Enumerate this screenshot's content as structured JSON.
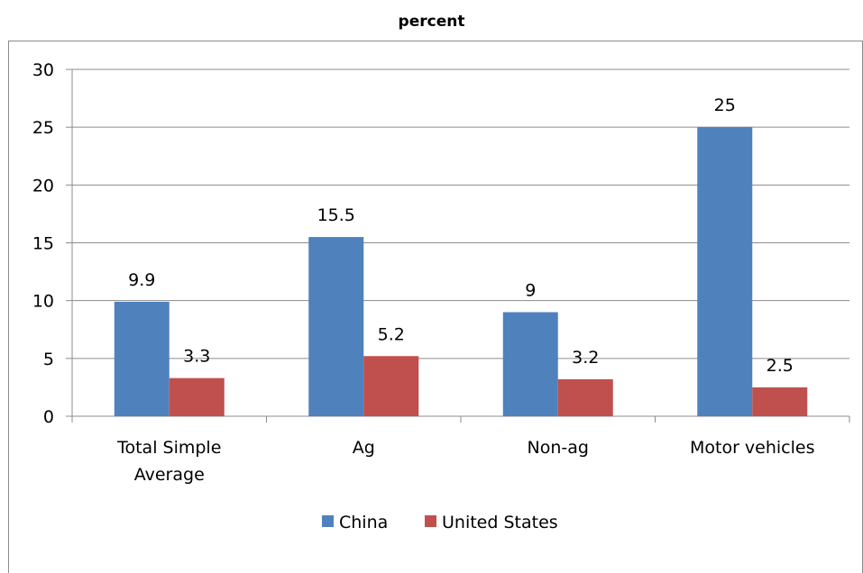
{
  "chart_data": {
    "type": "bar",
    "title": "percent",
    "categories": [
      "Total Simple Average",
      "Ag",
      "Non-ag",
      "Motor vehicles"
    ],
    "category_label_lines": [
      [
        "Total Simple",
        "Average"
      ],
      [
        "Ag"
      ],
      [
        "Non-ag"
      ],
      [
        "Motor vehicles"
      ]
    ],
    "series": [
      {
        "name": "China",
        "values": [
          9.9,
          15.5,
          9,
          25
        ],
        "color": "#4f81bd",
        "labels": [
          "9.9",
          "15.5",
          "9",
          "25"
        ]
      },
      {
        "name": "United States",
        "values": [
          3.3,
          5.2,
          3.2,
          2.5
        ],
        "color": "#c0504d",
        "labels": [
          "3.3",
          "5.2",
          "3.2",
          "2.5"
        ]
      }
    ],
    "yticks": [
      0,
      5,
      10,
      15,
      20,
      25,
      30
    ],
    "ylim": [
      0,
      30
    ],
    "xlabel": "",
    "ylabel": "",
    "grid": true,
    "legend_position": "bottom",
    "data_labels": true
  }
}
